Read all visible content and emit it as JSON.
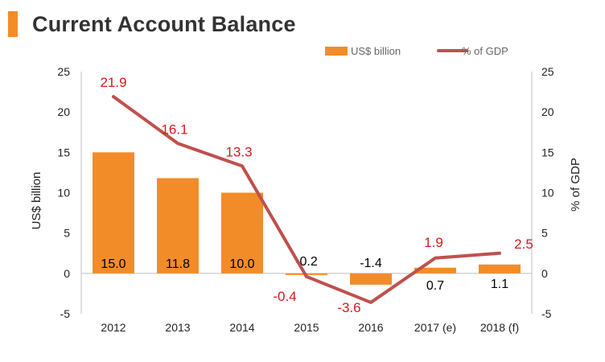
{
  "title": "Current Account Balance",
  "colors": {
    "accent": "#f28c28",
    "bar": "#f28c28",
    "line": "#c0504d",
    "line_label": "#d7191c"
  },
  "chart_data": {
    "type": "bar",
    "categories": [
      "2012",
      "2013",
      "2014",
      "2015",
      "2016",
      "2017 (e)",
      "2018 (f)"
    ],
    "series": [
      {
        "name": "US$ billion",
        "type": "bar",
        "axis": "left",
        "values": [
          15.0,
          11.8,
          10.0,
          -0.2,
          -1.4,
          0.7,
          1.1
        ],
        "labels": [
          "15.0",
          "11.8",
          "10.0",
          "-0.2",
          "-1.4",
          "0.7",
          "1.1"
        ]
      },
      {
        "name": "% of GDP",
        "type": "line",
        "axis": "right",
        "values": [
          21.9,
          16.1,
          13.3,
          -0.4,
          -3.6,
          1.9,
          2.5
        ],
        "labels": [
          "21.9",
          "16.1",
          "13.3",
          "-0.4",
          "-3.6",
          "1.9",
          "2.5"
        ]
      }
    ],
    "ylabel": "US$ billion",
    "y2label": "% of GDP",
    "ylim": [
      -5,
      25
    ],
    "y2lim": [
      -5,
      25
    ],
    "yticks": [
      "-5",
      "0",
      "5",
      "10",
      "15",
      "20",
      "25"
    ],
    "y2ticks": [
      "-5",
      "0",
      "5",
      "10",
      "15",
      "20",
      "25"
    ],
    "legend": [
      "US$ billion",
      "% of GDP"
    ],
    "legend_position": "top-right",
    "grid": false
  }
}
